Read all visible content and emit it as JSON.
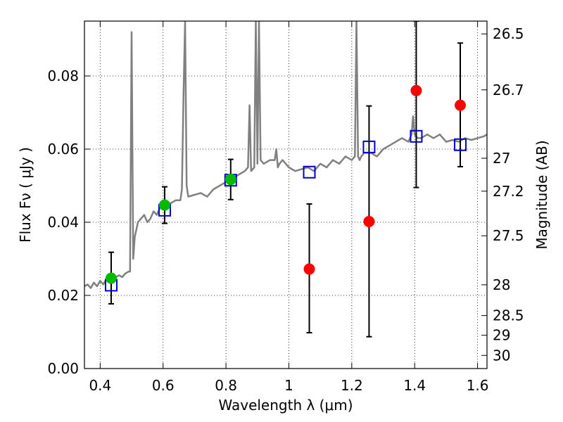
{
  "chart_data": {
    "type": "scatter",
    "xlabel": "Wavelength  λ (μm)",
    "ylabel": "Flux  Fν  ( μJy )",
    "ylabel_right": "Magnitude (AB)",
    "xlim": [
      0.35,
      1.63
    ],
    "ylim": [
      0.0,
      0.095
    ],
    "grid": true,
    "x_ticks": [
      0.4,
      0.6,
      0.8,
      1.0,
      1.2,
      1.4,
      1.6
    ],
    "x_tick_labels": [
      "0.4",
      "0.6",
      "0.8",
      "1",
      "1.2",
      "1.4",
      "1.6"
    ],
    "y_ticks": [
      0.0,
      0.02,
      0.04,
      0.06,
      0.08
    ],
    "y_tick_labels": [
      "0.00",
      "0.02",
      "0.04",
      "0.06",
      "0.08"
    ],
    "right_ticks": [
      {
        "flux": 0.0915,
        "label": "26.5"
      },
      {
        "flux": 0.0762,
        "label": "26.7"
      },
      {
        "flux": 0.0575,
        "label": "27"
      },
      {
        "flux": 0.0485,
        "label": "27.2"
      },
      {
        "flux": 0.0363,
        "label": "27.5"
      },
      {
        "flux": 0.0229,
        "label": "28"
      },
      {
        "flux": 0.0145,
        "label": "28.5"
      },
      {
        "flux": 0.0091,
        "label": "29"
      },
      {
        "flux": 0.0036,
        "label": "30"
      }
    ],
    "series": [
      {
        "kind": "line",
        "color": "#808080",
        "x": [
          0.35,
          0.36,
          0.37,
          0.38,
          0.39,
          0.4,
          0.41,
          0.42,
          0.43,
          0.44,
          0.45,
          0.46,
          0.47,
          0.48,
          0.49,
          0.495,
          0.5,
          0.505,
          0.51,
          0.52,
          0.53,
          0.54,
          0.55,
          0.56,
          0.57,
          0.58,
          0.59,
          0.6,
          0.62,
          0.64,
          0.655,
          0.66,
          0.665,
          0.67,
          0.675,
          0.68,
          0.7,
          0.72,
          0.74,
          0.76,
          0.78,
          0.8,
          0.82,
          0.84,
          0.86,
          0.87,
          0.875,
          0.88,
          0.89,
          0.895,
          0.9,
          0.905,
          0.91,
          0.92,
          0.94,
          0.955,
          0.96,
          0.965,
          0.97,
          0.98,
          1.0,
          1.02,
          1.04,
          1.06,
          1.08,
          1.1,
          1.12,
          1.14,
          1.16,
          1.18,
          1.2,
          1.21,
          1.215,
          1.22,
          1.225,
          1.23,
          1.24,
          1.26,
          1.28,
          1.3,
          1.32,
          1.34,
          1.36,
          1.38,
          1.39,
          1.395,
          1.4,
          1.41,
          1.42,
          1.44,
          1.46,
          1.48,
          1.5,
          1.52,
          1.54,
          1.56,
          1.58,
          1.6,
          1.62,
          1.63
        ],
        "y": [
          0.0225,
          0.023,
          0.022,
          0.0235,
          0.0225,
          0.024,
          0.023,
          0.0245,
          0.024,
          0.0245,
          0.025,
          0.0255,
          0.025,
          0.026,
          0.0265,
          0.0265,
          0.092,
          0.03,
          0.036,
          0.04,
          0.041,
          0.042,
          0.04,
          0.041,
          0.043,
          0.042,
          0.044,
          0.0445,
          0.045,
          0.046,
          0.046,
          0.049,
          0.075,
          0.095,
          0.05,
          0.047,
          0.0475,
          0.048,
          0.047,
          0.049,
          0.05,
          0.051,
          0.052,
          0.053,
          0.054,
          0.055,
          0.072,
          0.054,
          0.055,
          0.095,
          0.056,
          0.095,
          0.057,
          0.056,
          0.057,
          0.057,
          0.06,
          0.055,
          0.056,
          0.057,
          0.055,
          0.054,
          0.0545,
          0.055,
          0.054,
          0.056,
          0.055,
          0.057,
          0.056,
          0.058,
          0.057,
          0.058,
          0.095,
          0.058,
          0.057,
          0.058,
          0.059,
          0.059,
          0.058,
          0.06,
          0.061,
          0.062,
          0.063,
          0.062,
          0.064,
          0.069,
          0.064,
          0.063,
          0.063,
          0.064,
          0.063,
          0.064,
          0.062,
          0.0625,
          0.062,
          0.063,
          0.0625,
          0.063,
          0.0635,
          0.064
        ]
      },
      {
        "kind": "squares",
        "color": "#0000cc",
        "x": [
          0.435,
          0.605,
          0.815,
          1.065,
          1.255,
          1.405,
          1.545
        ],
        "y": [
          0.0228,
          0.0433,
          0.0515,
          0.0537,
          0.0606,
          0.0635,
          0.0612
        ]
      },
      {
        "kind": "points",
        "color": "#00bb00",
        "x": [
          0.435,
          0.605,
          0.815
        ],
        "y": [
          0.0247,
          0.0447,
          0.0517
        ],
        "err_low": [
          0.0177,
          0.0397,
          0.0462
        ],
        "err_high": [
          0.0318,
          0.0497,
          0.0572
        ]
      },
      {
        "kind": "points",
        "color": "#ff0000",
        "x": [
          1.065,
          1.255,
          1.405,
          1.545
        ],
        "y": [
          0.0272,
          0.0402,
          0.076,
          0.072
        ],
        "err_low": [
          0.0098,
          0.0087,
          0.0495,
          0.0552
        ],
        "err_high": [
          0.045,
          0.0718,
          0.095,
          0.089
        ]
      }
    ]
  }
}
